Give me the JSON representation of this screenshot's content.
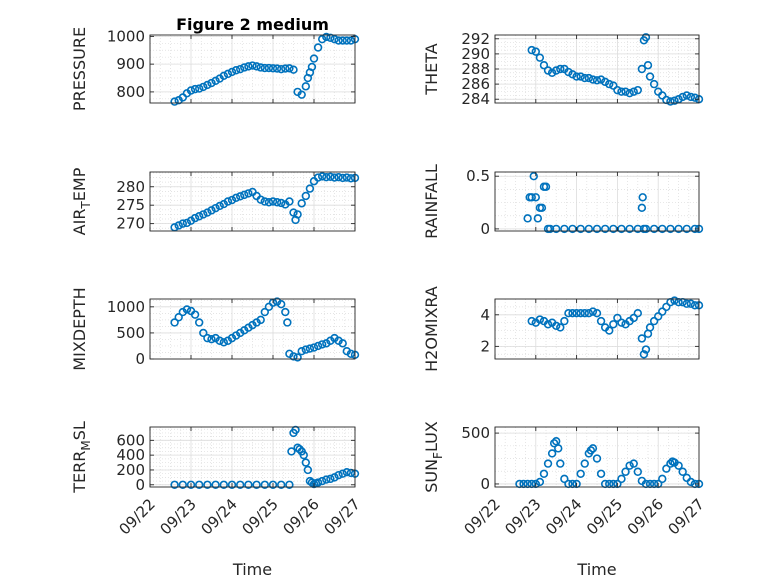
{
  "figure_title": "Figure 2 medium",
  "x_axis_label": "Time",
  "x_ticks": [
    "09/22",
    "09/23",
    "09/24",
    "09/25",
    "09/26",
    "09/27"
  ],
  "colors": {
    "marker": "#0072bd",
    "axis": "#262626",
    "grid": "#dcdcdc"
  },
  "chart_data": [
    {
      "type": "scatter",
      "title": "Figure 2 medium",
      "ylabel": "PRESSURE",
      "ylabel_main": "PRESSURE",
      "ylabel_sub": "",
      "xlim": [
        0,
        5
      ],
      "ylim": [
        760,
        1005
      ],
      "yticks": [
        800,
        900,
        1000
      ],
      "x": [
        0.6,
        0.7,
        0.8,
        0.9,
        1.0,
        1.1,
        1.2,
        1.3,
        1.4,
        1.5,
        1.6,
        1.7,
        1.8,
        1.9,
        2.0,
        2.1,
        2.2,
        2.3,
        2.4,
        2.5,
        2.6,
        2.7,
        2.8,
        2.9,
        3.0,
        3.1,
        3.2,
        3.3,
        3.4,
        3.5,
        3.6,
        3.7,
        3.8,
        3.85,
        3.9,
        3.95,
        4.0,
        4.1,
        4.2,
        4.3,
        4.4,
        4.5,
        4.6,
        4.7,
        4.8,
        4.9,
        5.0
      ],
      "y": [
        765,
        770,
        780,
        795,
        805,
        810,
        812,
        818,
        825,
        832,
        840,
        848,
        858,
        865,
        872,
        878,
        882,
        888,
        892,
        895,
        892,
        888,
        886,
        886,
        885,
        884,
        882,
        884,
        885,
        880,
        800,
        790,
        820,
        850,
        870,
        890,
        920,
        960,
        990,
        998,
        995,
        990,
        985,
        985,
        985,
        985,
        990
      ]
    },
    {
      "type": "scatter",
      "title": "",
      "ylabel": "THETA",
      "ylabel_main": "THETA",
      "ylabel_sub": "",
      "xlim": [
        0,
        5
      ],
      "ylim": [
        283.5,
        292.5
      ],
      "yticks": [
        284,
        286,
        288,
        290,
        292
      ],
      "x": [
        0.9,
        1.0,
        1.1,
        1.2,
        1.3,
        1.4,
        1.5,
        1.6,
        1.7,
        1.8,
        1.9,
        2.0,
        2.1,
        2.2,
        2.3,
        2.4,
        2.5,
        2.6,
        2.7,
        2.8,
        2.9,
        3.0,
        3.1,
        3.2,
        3.3,
        3.4,
        3.5,
        3.6,
        3.65,
        3.7,
        3.75,
        3.8,
        3.9,
        4.0,
        4.1,
        4.2,
        4.3,
        4.4,
        4.5,
        4.6,
        4.7,
        4.8,
        4.9,
        5.0
      ],
      "y": [
        290.5,
        290.3,
        289.5,
        288.5,
        287.8,
        287.5,
        287.8,
        288.0,
        288.0,
        287.6,
        287.3,
        287.0,
        287.0,
        286.8,
        286.8,
        286.6,
        286.5,
        286.6,
        286.3,
        286.0,
        285.8,
        285.2,
        285.0,
        285.0,
        284.8,
        285.0,
        285.2,
        288.0,
        291.8,
        292.2,
        288.5,
        287.0,
        286.0,
        285.0,
        284.5,
        283.9,
        283.7,
        283.8,
        284.0,
        284.3,
        284.5,
        284.3,
        284.2,
        284.0
      ]
    },
    {
      "type": "scatter",
      "title": "",
      "ylabel": "AIR_TEMP",
      "ylabel_main": "AIR",
      "ylabel_sub": "T",
      "ylabel_rest": "EMP",
      "xlim": [
        0,
        5
      ],
      "ylim": [
        268,
        284
      ],
      "yticks": [
        270,
        275,
        280
      ],
      "x": [
        0.6,
        0.7,
        0.8,
        0.9,
        1.0,
        1.1,
        1.2,
        1.3,
        1.4,
        1.5,
        1.6,
        1.7,
        1.8,
        1.9,
        2.0,
        2.1,
        2.2,
        2.3,
        2.4,
        2.5,
        2.6,
        2.7,
        2.8,
        2.9,
        3.0,
        3.1,
        3.2,
        3.3,
        3.4,
        3.5,
        3.55,
        3.6,
        3.7,
        3.8,
        3.9,
        4.0,
        4.1,
        4.2,
        4.3,
        4.4,
        4.5,
        4.6,
        4.7,
        4.8,
        4.9,
        5.0
      ],
      "y": [
        269,
        269.5,
        270,
        270.2,
        270.8,
        271.5,
        272,
        272.5,
        273,
        273.6,
        274.2,
        274.8,
        275.3,
        276,
        276.4,
        277,
        277.4,
        277.8,
        278.2,
        278.6,
        277.5,
        276.5,
        276,
        275.8,
        276,
        275.8,
        275.6,
        275.2,
        276,
        273,
        271,
        272.5,
        275.5,
        277.5,
        279.5,
        281.5,
        282.5,
        282.8,
        282.6,
        282.7,
        282.5,
        282.6,
        282.4,
        282.5,
        282.3,
        282.4
      ]
    },
    {
      "type": "scatter",
      "title": "",
      "ylabel": "RAINFALL",
      "ylabel_main": "RAINFALL",
      "ylabel_sub": "",
      "xlim": [
        0,
        5
      ],
      "ylim": [
        -0.02,
        0.54
      ],
      "yticks": [
        0,
        0.5
      ],
      "x": [
        0.8,
        0.85,
        0.9,
        0.95,
        1.0,
        1.05,
        1.1,
        1.15,
        1.2,
        1.25,
        1.3,
        1.35,
        1.5,
        1.7,
        1.9,
        2.1,
        2.3,
        2.5,
        2.7,
        2.9,
        3.1,
        3.3,
        3.5,
        3.6,
        3.62,
        3.65,
        3.7,
        3.9,
        4.1,
        4.3,
        4.5,
        4.7,
        4.9,
        5.0
      ],
      "y": [
        0.1,
        0.3,
        0.3,
        0.5,
        0.3,
        0.1,
        0.2,
        0.2,
        0.4,
        0.4,
        0.0,
        0.0,
        0.0,
        0.0,
        0.0,
        0.0,
        0.0,
        0.0,
        0.0,
        0.0,
        0.0,
        0.0,
        0.0,
        0.2,
        0.3,
        0.0,
        0.0,
        0.0,
        0.0,
        0.0,
        0.0,
        0.0,
        0.0,
        0.0
      ]
    },
    {
      "type": "scatter",
      "title": "",
      "ylabel": "MIXDEPTH",
      "ylabel_main": "MIXDEPTH",
      "ylabel_sub": "",
      "xlim": [
        0,
        5
      ],
      "ylim": [
        0,
        1150
      ],
      "yticks": [
        0,
        500,
        1000
      ],
      "x": [
        0.6,
        0.7,
        0.8,
        0.9,
        1.0,
        1.1,
        1.2,
        1.3,
        1.4,
        1.5,
        1.6,
        1.7,
        1.8,
        1.9,
        2.0,
        2.1,
        2.2,
        2.3,
        2.4,
        2.5,
        2.6,
        2.7,
        2.8,
        2.9,
        3.0,
        3.1,
        3.2,
        3.3,
        3.35,
        3.4,
        3.5,
        3.6,
        3.7,
        3.8,
        3.9,
        4.0,
        4.1,
        4.2,
        4.3,
        4.4,
        4.5,
        4.6,
        4.7,
        4.8,
        4.9,
        5.0
      ],
      "y": [
        700,
        800,
        900,
        950,
        920,
        850,
        700,
        500,
        400,
        380,
        400,
        350,
        320,
        350,
        400,
        450,
        500,
        550,
        600,
        650,
        700,
        750,
        900,
        1000,
        1080,
        1100,
        1050,
        900,
        700,
        100,
        50,
        30,
        150,
        180,
        200,
        220,
        250,
        280,
        300,
        350,
        400,
        350,
        300,
        150,
        100,
        80
      ]
    },
    {
      "type": "scatter",
      "title": "",
      "ylabel": "H2OMIXRA",
      "ylabel_main": "H2OMIXRA",
      "ylabel_sub": "",
      "xlim": [
        0,
        5
      ],
      "ylim": [
        1.2,
        5.0
      ],
      "yticks": [
        2,
        4
      ],
      "x": [
        0.9,
        1.0,
        1.1,
        1.2,
        1.3,
        1.4,
        1.5,
        1.6,
        1.7,
        1.8,
        1.9,
        2.0,
        2.1,
        2.2,
        2.3,
        2.4,
        2.5,
        2.6,
        2.7,
        2.8,
        2.9,
        3.0,
        3.1,
        3.2,
        3.3,
        3.4,
        3.5,
        3.6,
        3.65,
        3.7,
        3.75,
        3.8,
        3.9,
        4.0,
        4.1,
        4.2,
        4.3,
        4.4,
        4.5,
        4.6,
        4.7,
        4.8,
        4.9,
        5.0
      ],
      "y": [
        3.6,
        3.5,
        3.7,
        3.6,
        3.4,
        3.5,
        3.3,
        3.2,
        3.6,
        4.1,
        4.1,
        4.1,
        4.1,
        4.1,
        4.1,
        4.2,
        4.1,
        3.6,
        3.2,
        3.0,
        3.4,
        3.8,
        3.5,
        3.4,
        3.6,
        3.8,
        4.1,
        2.5,
        1.5,
        1.8,
        2.8,
        3.2,
        3.6,
        3.9,
        4.2,
        4.5,
        4.8,
        4.9,
        4.8,
        4.8,
        4.7,
        4.7,
        4.6,
        4.6
      ]
    },
    {
      "type": "scatter",
      "title": "",
      "ylabel": "TERR_MSL",
      "ylabel_main": "TERR",
      "ylabel_sub": "M",
      "ylabel_rest": "SL",
      "xlim": [
        0,
        5
      ],
      "ylim": [
        -30,
        780
      ],
      "yticks": [
        0,
        200,
        400,
        600
      ],
      "x": [
        0.6,
        0.8,
        1.0,
        1.2,
        1.4,
        1.6,
        1.8,
        2.0,
        2.2,
        2.4,
        2.6,
        2.8,
        3.0,
        3.2,
        3.4,
        3.45,
        3.5,
        3.55,
        3.6,
        3.65,
        3.7,
        3.75,
        3.8,
        3.85,
        3.9,
        3.95,
        4.0,
        4.05,
        4.1,
        4.2,
        4.3,
        4.4,
        4.5,
        4.6,
        4.7,
        4.8,
        4.9,
        5.0
      ],
      "y": [
        0,
        0,
        0,
        0,
        0,
        0,
        0,
        0,
        0,
        0,
        0,
        0,
        0,
        0,
        0,
        450,
        700,
        740,
        500,
        480,
        450,
        400,
        300,
        200,
        50,
        30,
        10,
        20,
        30,
        50,
        70,
        80,
        100,
        130,
        150,
        170,
        160,
        150
      ]
    },
    {
      "type": "scatter",
      "title": "",
      "ylabel": "SUN_FLUX",
      "ylabel_main": "SUN",
      "ylabel_sub": "F",
      "ylabel_rest": "LUX",
      "xlim": [
        0,
        5
      ],
      "ylim": [
        -30,
        560
      ],
      "yticks": [
        0,
        500
      ],
      "x": [
        0.6,
        0.7,
        0.8,
        0.9,
        1.0,
        1.1,
        1.2,
        1.3,
        1.4,
        1.45,
        1.5,
        1.55,
        1.6,
        1.7,
        1.8,
        1.9,
        2.0,
        2.1,
        2.2,
        2.3,
        2.35,
        2.4,
        2.5,
        2.6,
        2.7,
        2.8,
        2.9,
        3.0,
        3.1,
        3.2,
        3.3,
        3.4,
        3.5,
        3.6,
        3.7,
        3.8,
        3.9,
        4.0,
        4.1,
        4.2,
        4.3,
        4.35,
        4.4,
        4.5,
        4.6,
        4.7,
        4.8,
        4.9,
        5.0
      ],
      "y": [
        0,
        0,
        0,
        0,
        0,
        20,
        100,
        200,
        300,
        400,
        420,
        350,
        200,
        50,
        0,
        0,
        0,
        100,
        200,
        300,
        330,
        350,
        250,
        100,
        0,
        0,
        0,
        0,
        50,
        120,
        180,
        200,
        120,
        30,
        0,
        0,
        0,
        0,
        50,
        150,
        200,
        220,
        210,
        180,
        120,
        60,
        20,
        0,
        0
      ]
    }
  ]
}
